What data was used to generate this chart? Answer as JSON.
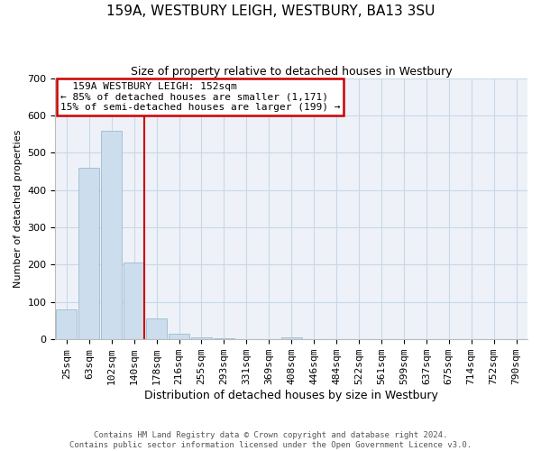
{
  "title": "159A, WESTBURY LEIGH, WESTBURY, BA13 3SU",
  "subtitle": "Size of property relative to detached houses in Westbury",
  "xlabel": "Distribution of detached houses by size in Westbury",
  "ylabel": "Number of detached properties",
  "bin_labels": [
    "25sqm",
    "63sqm",
    "102sqm",
    "140sqm",
    "178sqm",
    "216sqm",
    "255sqm",
    "293sqm",
    "331sqm",
    "369sqm",
    "408sqm",
    "446sqm",
    "484sqm",
    "522sqm",
    "561sqm",
    "599sqm",
    "637sqm",
    "675sqm",
    "714sqm",
    "752sqm",
    "790sqm"
  ],
  "bar_heights": [
    80,
    460,
    560,
    205,
    57,
    15,
    5,
    3,
    1,
    0,
    5,
    0,
    0,
    0,
    0,
    0,
    0,
    0,
    0,
    0,
    0
  ],
  "bar_color": "#ccdded",
  "bar_edge_color": "#9bbccc",
  "grid_color": "#c8d8e8",
  "annotation_box_color": "#cc0000",
  "vline_color": "#cc0000",
  "vline_position": 3.45,
  "annotation_text": "  159A WESTBURY LEIGH: 152sqm\n← 85% of detached houses are smaller (1,171)\n15% of semi-detached houses are larger (199) →",
  "footnote": "Contains HM Land Registry data © Crown copyright and database right 2024.\nContains public sector information licensed under the Open Government Licence v3.0.",
  "ylim": [
    0,
    700
  ],
  "yticks": [
    0,
    100,
    200,
    300,
    400,
    500,
    600,
    700
  ],
  "background_color": "#eef2f8",
  "title_fontsize": 11,
  "subtitle_fontsize": 9,
  "ylabel_fontsize": 8,
  "xlabel_fontsize": 9,
  "tick_fontsize": 8,
  "annot_fontsize": 8
}
